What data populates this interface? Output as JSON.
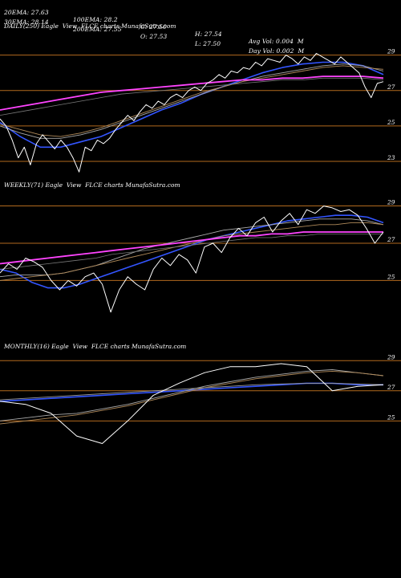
{
  "header": {
    "row1": [
      "20EMA: 27.63",
      "100EMA: 28.2",
      "C: 27.50",
      "H: 27.54",
      "Avg Vol: 0.004  M"
    ],
    "row2": [
      "30EMA: 28.14",
      "200EMA: 27.55",
      "O: 27.53",
      "L: 27.50",
      "Day Vol: 0.002  M"
    ]
  },
  "colors": {
    "price": "#ffffff",
    "ema_blue": "#3355ff",
    "ema_magenta": "#ff44ff",
    "ema_gray": "#aaaaaa",
    "ema_tan": "#b08a5a",
    "level_line": "#b26a1e",
    "background": "#000000"
  },
  "chart_data": [
    {
      "type": "line",
      "title": "DAILY(250) Eagle  View  FLCE charts MunafaSutra.com",
      "y_ticks": [
        "29",
        "27",
        "25",
        "23"
      ],
      "ylim": [
        22.5,
        30.3
      ],
      "levels": [
        29,
        27,
        25,
        23
      ],
      "series": [
        {
          "role": "price",
          "color": "#ffffff",
          "width": 1,
          "values": [
            25.4,
            25.0,
            24.2,
            23.2,
            23.8,
            22.8,
            24.0,
            24.5,
            24.1,
            23.7,
            24.2,
            23.8,
            23.2,
            22.4,
            23.8,
            23.6,
            24.2,
            24.0,
            24.3,
            24.8,
            25.2,
            25.6,
            25.3,
            25.8,
            26.2,
            26.0,
            26.4,
            26.2,
            26.6,
            26.8,
            26.6,
            27.0,
            27.2,
            27.0,
            27.4,
            27.6,
            27.9,
            27.7,
            28.1,
            28.0,
            28.3,
            28.2,
            28.6,
            28.4,
            28.8,
            28.7,
            28.6,
            29.0,
            28.8,
            28.5,
            28.9,
            28.7,
            29.1,
            28.9,
            28.7,
            28.5,
            28.9,
            28.6,
            28.3,
            28.0,
            27.2,
            26.6,
            27.4,
            27.5
          ]
        },
        {
          "role": "ema",
          "color": "#3355ff",
          "width": 1.6,
          "values": [
            25.2,
            24.4,
            23.8,
            23.8,
            24.1,
            24.4,
            24.9,
            25.4,
            25.9,
            26.3,
            26.8,
            27.2,
            27.6,
            28.0,
            28.3,
            28.5,
            28.6,
            28.6,
            28.4,
            27.9
          ]
        },
        {
          "role": "ema",
          "color": "#aaaaaa",
          "width": 0.9,
          "values": [
            25.0,
            24.6,
            24.3,
            24.3,
            24.5,
            24.8,
            25.2,
            25.6,
            26.0,
            26.4,
            26.8,
            27.2,
            27.5,
            27.8,
            28.0,
            28.2,
            28.4,
            28.5,
            28.4,
            28.1
          ]
        },
        {
          "role": "ema",
          "color": "#b08a5a",
          "width": 0.9,
          "values": [
            25.1,
            24.8,
            24.5,
            24.4,
            24.6,
            24.9,
            25.3,
            25.7,
            26.1,
            26.5,
            26.9,
            27.2,
            27.5,
            27.7,
            27.9,
            28.1,
            28.3,
            28.4,
            28.3,
            28.2
          ]
        },
        {
          "role": "ema",
          "color": "#ff44ff",
          "width": 1.8,
          "values": [
            25.9,
            26.1,
            26.3,
            26.5,
            26.7,
            26.9,
            27.0,
            27.1,
            27.2,
            27.3,
            27.4,
            27.5,
            27.6,
            27.6,
            27.7,
            27.7,
            27.8,
            27.8,
            27.8,
            27.7
          ]
        },
        {
          "role": "ema",
          "color": "#777777",
          "width": 0.8,
          "values": [
            25.6,
            25.8,
            26.0,
            26.2,
            26.4,
            26.6,
            26.8,
            26.9,
            27.0,
            27.1,
            27.2,
            27.3,
            27.4,
            27.5,
            27.6,
            27.6,
            27.7,
            27.7,
            27.7,
            27.6
          ]
        }
      ]
    },
    {
      "type": "line",
      "title": "WEEKLY(71) Eagle  View  FLCE charts MunafaSutra.com",
      "y_ticks": [
        "29",
        "27",
        "25"
      ],
      "ylim": [
        22.3,
        29.8
      ],
      "levels": [
        29,
        27,
        25
      ],
      "series": [
        {
          "role": "price",
          "color": "#ffffff",
          "width": 1,
          "values": [
            25.4,
            25.9,
            25.6,
            26.2,
            26.0,
            25.7,
            25.0,
            24.5,
            25.0,
            24.7,
            25.2,
            25.4,
            24.8,
            23.3,
            24.5,
            25.2,
            24.8,
            24.5,
            25.6,
            26.2,
            25.8,
            26.4,
            26.1,
            25.4,
            26.8,
            27.0,
            26.5,
            27.3,
            27.8,
            27.4,
            28.1,
            28.4,
            27.6,
            28.2,
            28.6,
            28.0,
            28.8,
            28.6,
            29.0,
            28.9,
            28.7,
            28.8,
            28.5,
            27.8,
            27.0,
            27.6
          ]
        },
        {
          "role": "ema",
          "color": "#3355ff",
          "width": 1.6,
          "values": [
            25.6,
            25.4,
            24.9,
            24.6,
            24.6,
            24.8,
            25.1,
            25.4,
            25.7,
            26.0,
            26.3,
            26.6,
            26.9,
            27.2,
            27.4,
            27.6,
            27.8,
            28.0,
            28.2,
            28.3,
            28.4,
            28.5,
            28.5,
            28.4,
            28.1
          ]
        },
        {
          "role": "ema",
          "color": "#aaaaaa",
          "width": 0.9,
          "values": [
            25.2,
            25.3,
            25.3,
            25.3,
            25.4,
            25.6,
            25.8,
            26.1,
            26.4,
            26.7,
            26.9,
            27.1,
            27.3,
            27.5,
            27.7,
            27.8,
            27.9,
            28.0,
            28.1,
            28.2,
            28.3,
            28.3,
            28.3,
            28.2,
            28.0
          ]
        },
        {
          "role": "ema",
          "color": "#b08a5a",
          "width": 0.9,
          "values": [
            25.0,
            25.1,
            25.2,
            25.3,
            25.4,
            25.6,
            25.8,
            26.0,
            26.2,
            26.4,
            26.6,
            26.8,
            27.0,
            27.2,
            27.4,
            27.5,
            27.6,
            27.7,
            27.8,
            27.9,
            28.0,
            28.0,
            28.1,
            28.1,
            28.0
          ]
        },
        {
          "role": "ema",
          "color": "#ff44ff",
          "width": 1.8,
          "values": [
            25.9,
            26.0,
            26.1,
            26.2,
            26.3,
            26.4,
            26.5,
            26.6,
            26.7,
            26.8,
            26.9,
            27.0,
            27.1,
            27.2,
            27.3,
            27.4,
            27.4,
            27.5,
            27.5,
            27.6,
            27.6,
            27.6,
            27.6,
            27.6,
            27.6
          ]
        },
        {
          "role": "ema",
          "color": "#777777",
          "width": 0.8,
          "values": [
            25.6,
            25.7,
            25.8,
            25.9,
            26.0,
            26.1,
            26.2,
            26.4,
            26.5,
            26.6,
            26.7,
            26.8,
            26.9,
            27.0,
            27.1,
            27.2,
            27.3,
            27.3,
            27.4,
            27.4,
            27.5,
            27.5,
            27.5,
            27.5,
            27.5
          ]
        }
      ]
    },
    {
      "type": "line",
      "title": "MONTHLY(16) Eagle  View  FLCE charts MunafaSutra.com",
      "y_ticks": [
        "29",
        "27",
        "25"
      ],
      "ylim": [
        22.3,
        29.6
      ],
      "levels": [
        29,
        27,
        25
      ],
      "series": [
        {
          "role": "price",
          "color": "#ffffff",
          "width": 1,
          "values": [
            26.3,
            26.1,
            25.5,
            24.0,
            23.5,
            25.0,
            26.7,
            27.5,
            28.2,
            28.6,
            28.6,
            28.8,
            28.6,
            27.0,
            27.3,
            27.4
          ]
        },
        {
          "role": "ema",
          "color": "#3355ff",
          "width": 1.6,
          "values": [
            26.3,
            26.4,
            26.5,
            26.6,
            26.7,
            26.8,
            26.9,
            27.0,
            27.1,
            27.2,
            27.3,
            27.4,
            27.5,
            27.5,
            27.4,
            27.4
          ]
        },
        {
          "role": "ema",
          "color": "#aaaaaa",
          "width": 0.9,
          "values": [
            25.0,
            25.2,
            25.4,
            25.5,
            25.8,
            26.1,
            26.5,
            26.9,
            27.3,
            27.6,
            27.9,
            28.1,
            28.3,
            28.4,
            28.2,
            28.0
          ]
        },
        {
          "role": "ema",
          "color": "#b08a5a",
          "width": 0.9,
          "values": [
            24.8,
            25.0,
            25.2,
            25.4,
            25.7,
            26.0,
            26.4,
            26.8,
            27.2,
            27.5,
            27.8,
            28.0,
            28.2,
            28.3,
            28.2,
            28.0
          ]
        },
        {
          "role": "ema",
          "color": "#999999",
          "width": 0.9,
          "values": [
            26.4,
            26.5,
            26.6,
            26.7,
            26.8,
            26.9,
            27.0,
            27.1,
            27.2,
            27.3,
            27.4,
            27.45,
            27.5,
            27.5,
            27.45,
            27.4
          ]
        }
      ]
    }
  ]
}
